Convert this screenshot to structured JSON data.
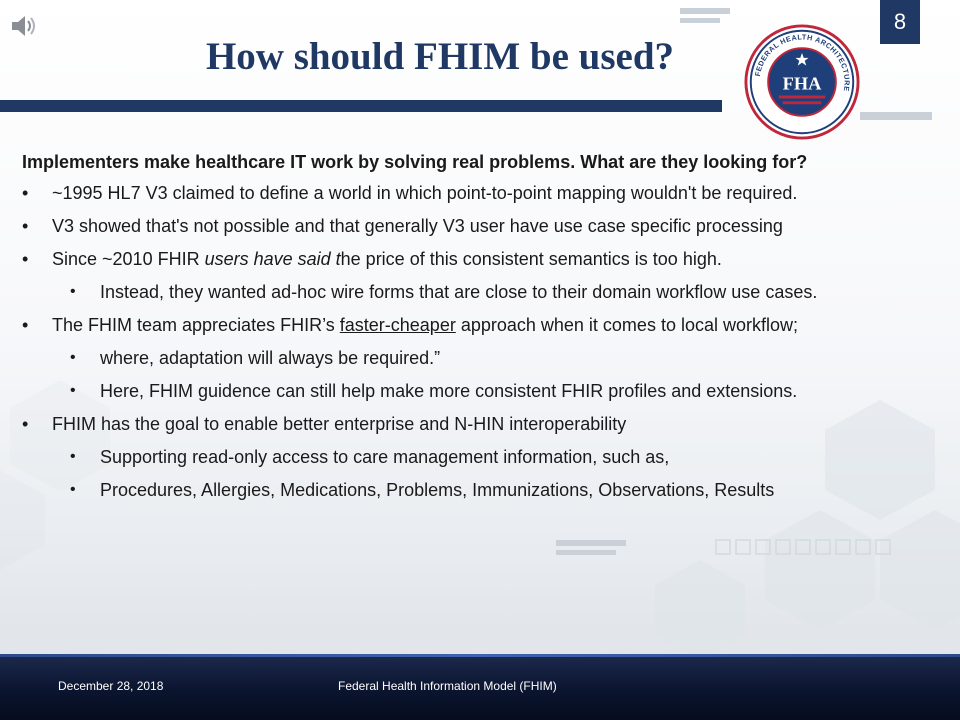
{
  "slide": {
    "title": "How should FHIM be used?",
    "number": "8"
  },
  "logo": {
    "abbr": "FHA",
    "ring_text": "FEDERAL HEALTH ARCHITECTURE"
  },
  "content": {
    "lead": "Implementers make healthcare IT work by solving real problems. What are they looking for?",
    "bullet_glyph": "•",
    "bullets": [
      {
        "text": "~1995 HL7 V3 claimed to define a world in which point-to-point mapping wouldn't be required."
      },
      {
        "text": "V3 showed that's not possible and that generally V3 user have use case specific processing"
      },
      {
        "pre": "Since ~2010 FHIR ",
        "em": "users have said t",
        "post": "he price of this consistent semantics is too high."
      },
      {
        "text": "Instead, they wanted ad-hoc wire forms that are close to their domain workflow use cases."
      },
      {
        "pre": "The FHIM team appreciates FHIR’s ",
        "u": "faster-cheaper",
        "post": " approach when it comes to local workflow;"
      },
      {
        "text": "where, adaptation will always be required.”"
      },
      {
        "text": "Here, FHIM guidence can still help make more consistent FHIR profiles and extensions."
      },
      {
        "text": "FHIM has the goal to enable better enterprise and N-HIN interoperability"
      },
      {
        "text": "Supporting read-only access to care management information, such as,"
      },
      {
        "text": "Procedures, Allergies, Medications, Problems, Immunizations,  Observations, Results"
      }
    ]
  },
  "footer": {
    "date": "December  28, 2018",
    "title": "Federal Health Information Model (FHIM)"
  },
  "colors": {
    "navy": "#1f3864",
    "logo_red": "#c0273b",
    "logo_blue": "#1f3f7a"
  }
}
